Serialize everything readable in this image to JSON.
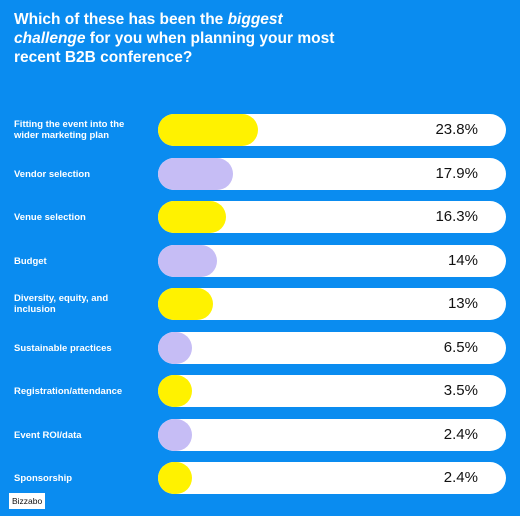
{
  "title": {
    "part1": "Which of these has been the ",
    "emphasis": "biggest challenge",
    "part2": " for you when planning your most recent B2B conference?"
  },
  "colors": {
    "background": "#0a8cf0",
    "track": "#ffffff",
    "yellow": "#fff200",
    "lavender": "#c6bdf5"
  },
  "chart_data": {
    "type": "bar",
    "orientation": "horizontal",
    "xlim": [
      0,
      100
    ],
    "categories": [
      "Fitting the event into the wider marketing plan",
      "Vendor selection",
      "Venue selection",
      "Budget",
      "Diversity, equity, and inclusion",
      "Sustainable practices",
      "Registration/attendance",
      "Event ROI/data",
      "Sponsorship"
    ],
    "values": [
      23.8,
      17.9,
      16.3,
      14,
      13,
      6.5,
      3.5,
      2.4,
      2.4
    ],
    "value_labels": [
      "23.8%",
      "17.9%",
      "16.3%",
      "14%",
      "13%",
      "6.5%",
      "3.5%",
      "2.4%",
      "2.4%"
    ],
    "bar_colors": [
      "yellow",
      "lavender",
      "yellow",
      "lavender",
      "yellow",
      "lavender",
      "yellow",
      "lavender",
      "yellow"
    ]
  },
  "logo": "Bizzabo"
}
